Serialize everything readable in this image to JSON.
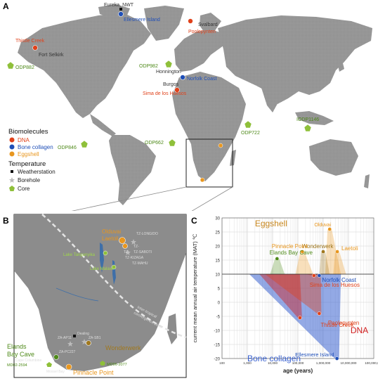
{
  "panels": {
    "a": "A",
    "b": "B",
    "c": "C"
  },
  "map_labels": [
    {
      "id": "eureka",
      "text": "Eureka, NWT",
      "color": "#333333"
    },
    {
      "id": "ellesmere",
      "text": "Ellesmere Island",
      "color": "#1f4fb8"
    },
    {
      "id": "svalbard",
      "text": "Svalbard",
      "color": "#333333"
    },
    {
      "id": "poolepynten",
      "text": "Poolepynten",
      "color": "#e0411a"
    },
    {
      "id": "thistle",
      "text": "Thistle Creek",
      "color": "#e0411a"
    },
    {
      "id": "fortselkirk",
      "text": "Fort Selkirk",
      "color": "#333333"
    },
    {
      "id": "odp882",
      "text": "ODP882",
      "color": "#4f8a1a"
    },
    {
      "id": "odp982",
      "text": "ODP982",
      "color": "#4f8a1a"
    },
    {
      "id": "honnington",
      "text": "Honnington",
      "color": "#333333"
    },
    {
      "id": "norfolk",
      "text": "Norfolk Coast",
      "color": "#1f4fb8"
    },
    {
      "id": "burgos",
      "text": "Burgos",
      "color": "#333333"
    },
    {
      "id": "sima",
      "text": "Sima de los Huesos",
      "color": "#e0411a"
    },
    {
      "id": "iodp1146",
      "text": "IODP1146",
      "color": "#4f8a1a"
    },
    {
      "id": "odp722",
      "text": "ODP722",
      "color": "#4f8a1a"
    },
    {
      "id": "odp846",
      "text": "ODP846",
      "color": "#4f8a1a"
    },
    {
      "id": "odp662",
      "text": "ODP662",
      "color": "#4f8a1a"
    }
  ],
  "legend": {
    "biomolecules_title": "Biomolecules",
    "items": [
      {
        "label": "DNA",
        "color": "#e0411a"
      },
      {
        "label": "Bone collagen",
        "color": "#1f4fb8"
      },
      {
        "label": "Eggshell",
        "color": "#e8961e"
      }
    ],
    "temperature_title": "Temperature",
    "temp_items": [
      {
        "label": "Weatherstation",
        "shape": "square"
      },
      {
        "label": "Borehole",
        "shape": "star"
      },
      {
        "label": "Core",
        "shape": "pentagon"
      }
    ]
  },
  "africa_labels": [
    {
      "id": "olduvai",
      "text": "Olduvai",
      "color": "#e8961e"
    },
    {
      "id": "laetoli",
      "text": "Laetoli",
      "color": "#e8961e"
    },
    {
      "id": "tzlongido",
      "text": "TZ-LONGIDO",
      "color": "#dddddd"
    },
    {
      "id": "tzkizaga",
      "text": "TZ-KIZAGA",
      "color": "#dddddd"
    },
    {
      "id": "tzsaboti",
      "text": "TZ-SABOTI",
      "color": "#dddddd"
    },
    {
      "id": "tzmahu",
      "text": "TZ-MAHU",
      "color": "#dddddd"
    },
    {
      "id": "tz",
      "text": "TZ-",
      "color": "#dddddd"
    },
    {
      "id": "tc",
      "text": "TZ-",
      "color": "#dddddd"
    },
    {
      "id": "tanganyika",
      "text": "Lake Tanganyika",
      "color": "#9fd84a"
    },
    {
      "id": "malawi",
      "text": "Lake Malawi",
      "color": "#9fd84a"
    },
    {
      "id": "itcz",
      "text": "Inter-tropical",
      "color": "#dddddd"
    },
    {
      "id": "itcz2",
      "text": "convergence zone",
      "color": "#dddddd"
    },
    {
      "id": "dealing",
      "text": "Dealing",
      "color": "#dddddd"
    },
    {
      "id": "zaap11",
      "text": "ZA-AP11",
      "color": "#dddddd"
    },
    {
      "id": "zasb1",
      "text": "ZA-SB1",
      "color": "#dddddd"
    },
    {
      "id": "zapc227",
      "text": "ZA-PC227",
      "color": "#dddddd"
    },
    {
      "id": "elands",
      "text": "Elands",
      "color": "#4f8a1a"
    },
    {
      "id": "baycave",
      "text": "Bay Cave",
      "color": "#4f8a1a"
    },
    {
      "id": "capecolumbine",
      "text": "Cape Columbine",
      "color": "#dddddd"
    },
    {
      "id": "md022594",
      "text": "MD02-2594",
      "color": "#4f8a1a"
    },
    {
      "id": "mosselbay",
      "text": "Mossel Bay",
      "color": "#dddddd"
    },
    {
      "id": "pinnacle",
      "text": "Pinnacle Point",
      "color": "#e8961e"
    },
    {
      "id": "wonderwerk",
      "text": "Wonderwerk",
      "color": "#a0781e"
    },
    {
      "id": "md962077",
      "text": "MD96-2077",
      "color": "#4f8a1a"
    }
  ],
  "chart_data": {
    "type": "scatter",
    "xlabel": "age (years)",
    "ylabel": "current mean annual air temperature (MAT) ℃",
    "x_scale": "log",
    "xlim": [
      100,
      100000000
    ],
    "ylim": [
      -20,
      30
    ],
    "x_ticks": [
      "100",
      "1,000",
      "10,000",
      "100,000",
      "1,000,000",
      "10,000,000",
      "100,000,000"
    ],
    "y_ticks": [
      "-20",
      "-15",
      "-10",
      "-5",
      "0",
      "5",
      "10",
      "15",
      "20",
      "25",
      "30"
    ],
    "reference_line_y": 10,
    "grid": true,
    "group_labels": [
      {
        "text": "Eggshell",
        "color": "#c8871e"
      },
      {
        "text": "DNA",
        "color": "#d11f1f"
      },
      {
        "text": "Bone collagen",
        "color": "#3a62d0"
      }
    ],
    "points": [
      {
        "label": "Olduvai",
        "x": 1800000,
        "y": 26,
        "color": "#e8961e"
      },
      {
        "label": "Wonderwerk",
        "x": 1000000,
        "y": 18,
        "color": "#a0781e"
      },
      {
        "label": "Laetoli",
        "x": 3600000,
        "y": 18,
        "color": "#e8961e"
      },
      {
        "label": "Pinnacle Point",
        "x": 150000,
        "y": 18,
        "color": "#e8961e"
      },
      {
        "label": "Elands Bay Cave",
        "x": 15000,
        "y": 15.5,
        "color": "#4f8a1a"
      },
      {
        "label": "Norfolk Coast",
        "x": 700000,
        "y": 9.5,
        "color": "#1f4fb8"
      },
      {
        "label": "Sima de los Huesos",
        "x": 430000,
        "y": 9.5,
        "color": "#e0411a"
      },
      {
        "label": "Thistle Creek",
        "x": 700000,
        "y": -4,
        "color": "#e0411a"
      },
      {
        "label": "Poolepynten",
        "x": 120000,
        "y": -5.5,
        "color": "#e0411a"
      },
      {
        "label": "Ellesmere Island",
        "x": 3500000,
        "y": -20,
        "color": "#1f4fb8"
      }
    ]
  }
}
